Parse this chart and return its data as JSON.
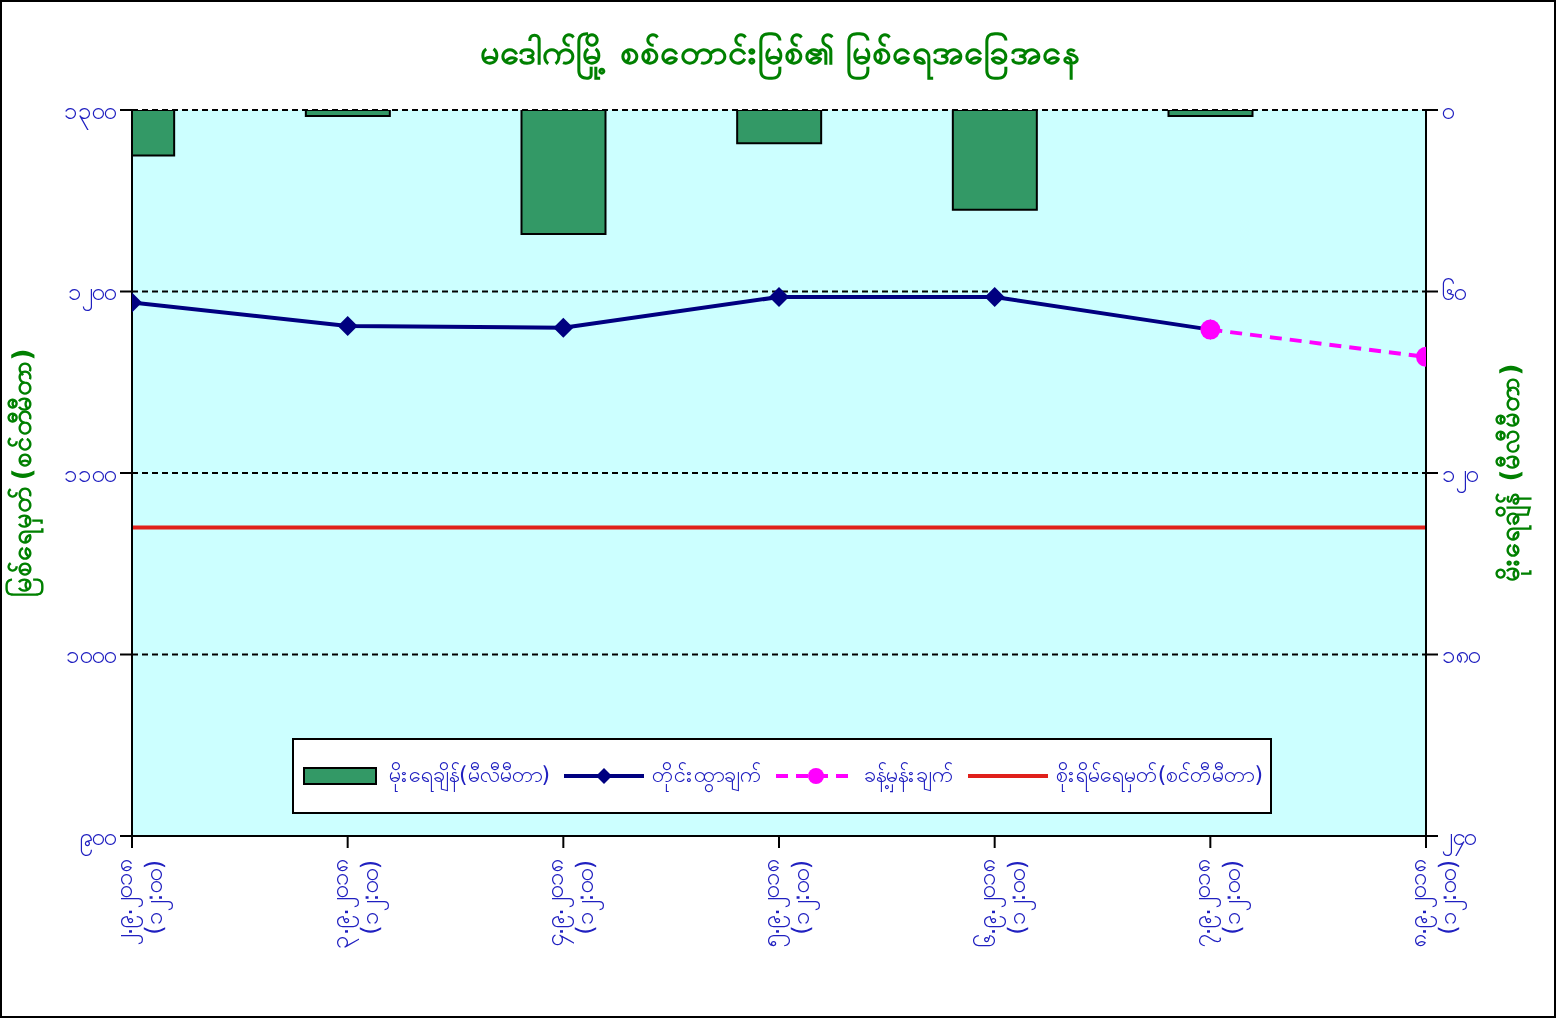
{
  "chart_data": {
    "type": "line",
    "title": "မဒေါက်မြို့ စစ်တောင်းမြစ်၏ မြစ်ရေအခြေအနေ",
    "ylabel": "မြစ်ရေမှတ် (စင်တီမီတာ)",
    "y2label": "မိုးရေချိန် (မီလီမီတာ)",
    "categories": [
      "၂.၉.၂၀၁၈\n(၁၂:၀၀)",
      "၃.၉.၂၀၁၈\n(၁၂:၀၀)",
      "၄.၉.၂၀၁၈\n(၁၂:၀၀)",
      "၅.၉.၂၀၁၈\n(၁၂:၀၀)",
      "၆.၉.၂၀၁၈\n(၁၂:၀၀)",
      "၇.၉.၂၀၁၈\n(၁၂:၀၀)",
      "၈.၉.၂၀၁၈\n(၁၂:၀၀)"
    ],
    "series": [
      {
        "name": "မိုးရေချိန်(မီလီမီတာ)",
        "type": "bar",
        "axis": "y2",
        "color": "#339966",
        "values": [
          15,
          2,
          41,
          11,
          33,
          2,
          null
        ]
      },
      {
        "name": "တိုင်းထွာချက်",
        "color": "#000080",
        "marker": "diamond",
        "line_style": "solid",
        "values": [
          1194,
          1181,
          1180,
          1197,
          1197,
          1179,
          null
        ]
      },
      {
        "name": "ခန့်မှန်းချက်",
        "color": "#ff00ff",
        "marker": "circle",
        "line_style": "dashed",
        "values": [
          null,
          null,
          null,
          null,
          null,
          1179,
          1164
        ]
      }
    ],
    "ylim": [
      900,
      1300
    ],
    "yticks": [
      {
        "value": 900,
        "label": "၉၀၀"
      },
      {
        "value": 1000,
        "label": "၁၀၀၀"
      },
      {
        "value": 1100,
        "label": "၁၁၀၀"
      },
      {
        "value": 1200,
        "label": "၁၂၀၀"
      },
      {
        "value": 1300,
        "label": "၁၃၀၀"
      }
    ],
    "y2lim": [
      240,
      0
    ],
    "y2ticks": [
      {
        "value": 0,
        "label": "၀"
      },
      {
        "value": 60,
        "label": "၆၀"
      },
      {
        "value": 120,
        "label": "၁၂၀"
      },
      {
        "value": 180,
        "label": "၁၈၀"
      },
      {
        "value": 240,
        "label": "၂၄၀"
      }
    ],
    "ref_lines": [
      {
        "axis": "y",
        "value": 1070,
        "label": "စိုးရိမ်ရေမှတ်(စင်တီမီတာ)",
        "color": "#e0201b"
      }
    ],
    "grid": "y",
    "legend": "bottom"
  }
}
